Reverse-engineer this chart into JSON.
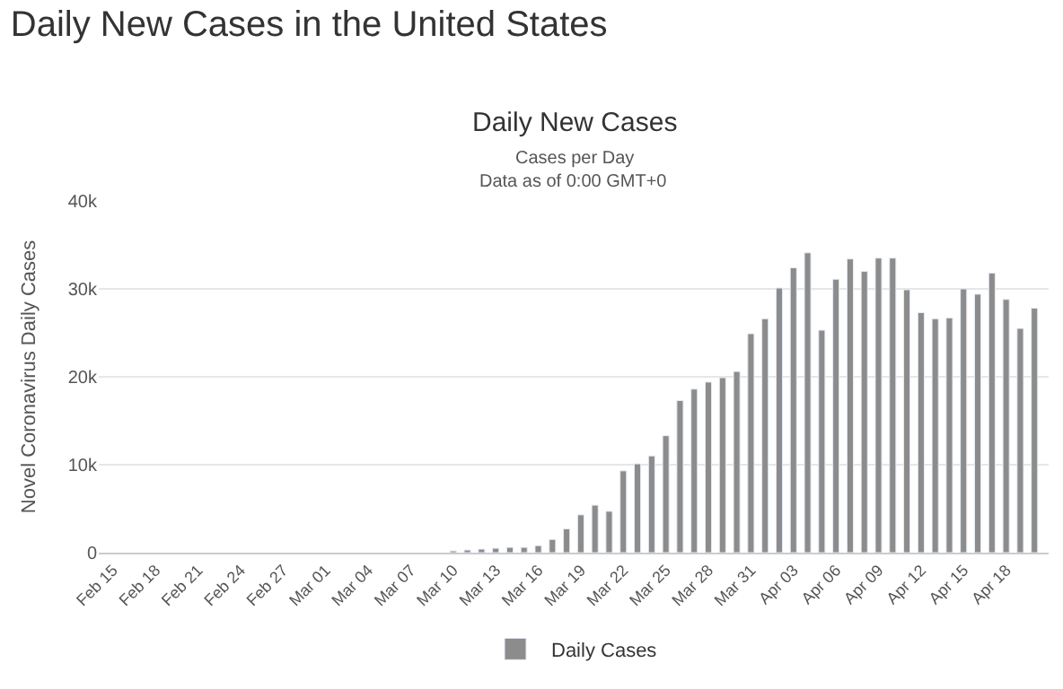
{
  "chart_data": {
    "type": "bar",
    "title": "Daily New Cases in the United States",
    "subtitle": "Daily New Cases",
    "annotations": [
      "Cases per Day",
      "Data as of 0:00 GMT+0"
    ],
    "ylabel": "Novel Coronavirus Daily Cases",
    "categories": [
      "Feb 15",
      null,
      null,
      "Feb 18",
      null,
      null,
      "Feb 21",
      null,
      null,
      "Feb 24",
      null,
      null,
      "Feb 27",
      null,
      null,
      "Mar 01",
      null,
      null,
      "Mar 04",
      null,
      null,
      "Mar 07",
      null,
      null,
      "Mar 10",
      null,
      null,
      "Mar 13",
      null,
      null,
      "Mar 16",
      null,
      null,
      "Mar 19",
      null,
      null,
      "Mar 22",
      null,
      null,
      "Mar 25",
      null,
      null,
      "Mar 28",
      null,
      null,
      "Mar 31",
      null,
      null,
      "Apr 03",
      null,
      null,
      "Apr 06",
      null,
      null,
      "Apr 09",
      null,
      null,
      "Apr 12",
      null,
      null,
      "Apr 15",
      null,
      null,
      "Apr 18",
      null,
      null
    ],
    "series": [
      {
        "name": "Daily Cases",
        "color": "#8c8c8c",
        "values": [
          null,
          null,
          null,
          null,
          null,
          null,
          null,
          null,
          null,
          null,
          null,
          null,
          null,
          null,
          null,
          null,
          null,
          null,
          null,
          null,
          null,
          null,
          null,
          null,
          200,
          300,
          400,
          500,
          600,
          600,
          800,
          1500,
          2700,
          4300,
          5400,
          4700,
          9300,
          10100,
          11000,
          13300,
          17300,
          18600,
          19400,
          19900,
          20600,
          24900,
          26600,
          30100,
          32400,
          34100,
          25300,
          31100,
          33400,
          32000,
          33500,
          33500,
          29900,
          27300,
          26600,
          26700,
          30000,
          29400,
          31800,
          28800,
          25500,
          27800
        ]
      }
    ],
    "ylim": [
      0,
      40000
    ],
    "yticks": [
      0,
      {
        "value": 10000,
        "label": "10k"
      },
      {
        "value": 20000,
        "label": "20k"
      },
      {
        "value": 30000,
        "label": "30k"
      },
      {
        "value": 40000,
        "label": "40k"
      }
    ],
    "grid": "y",
    "legend": "bottom"
  }
}
